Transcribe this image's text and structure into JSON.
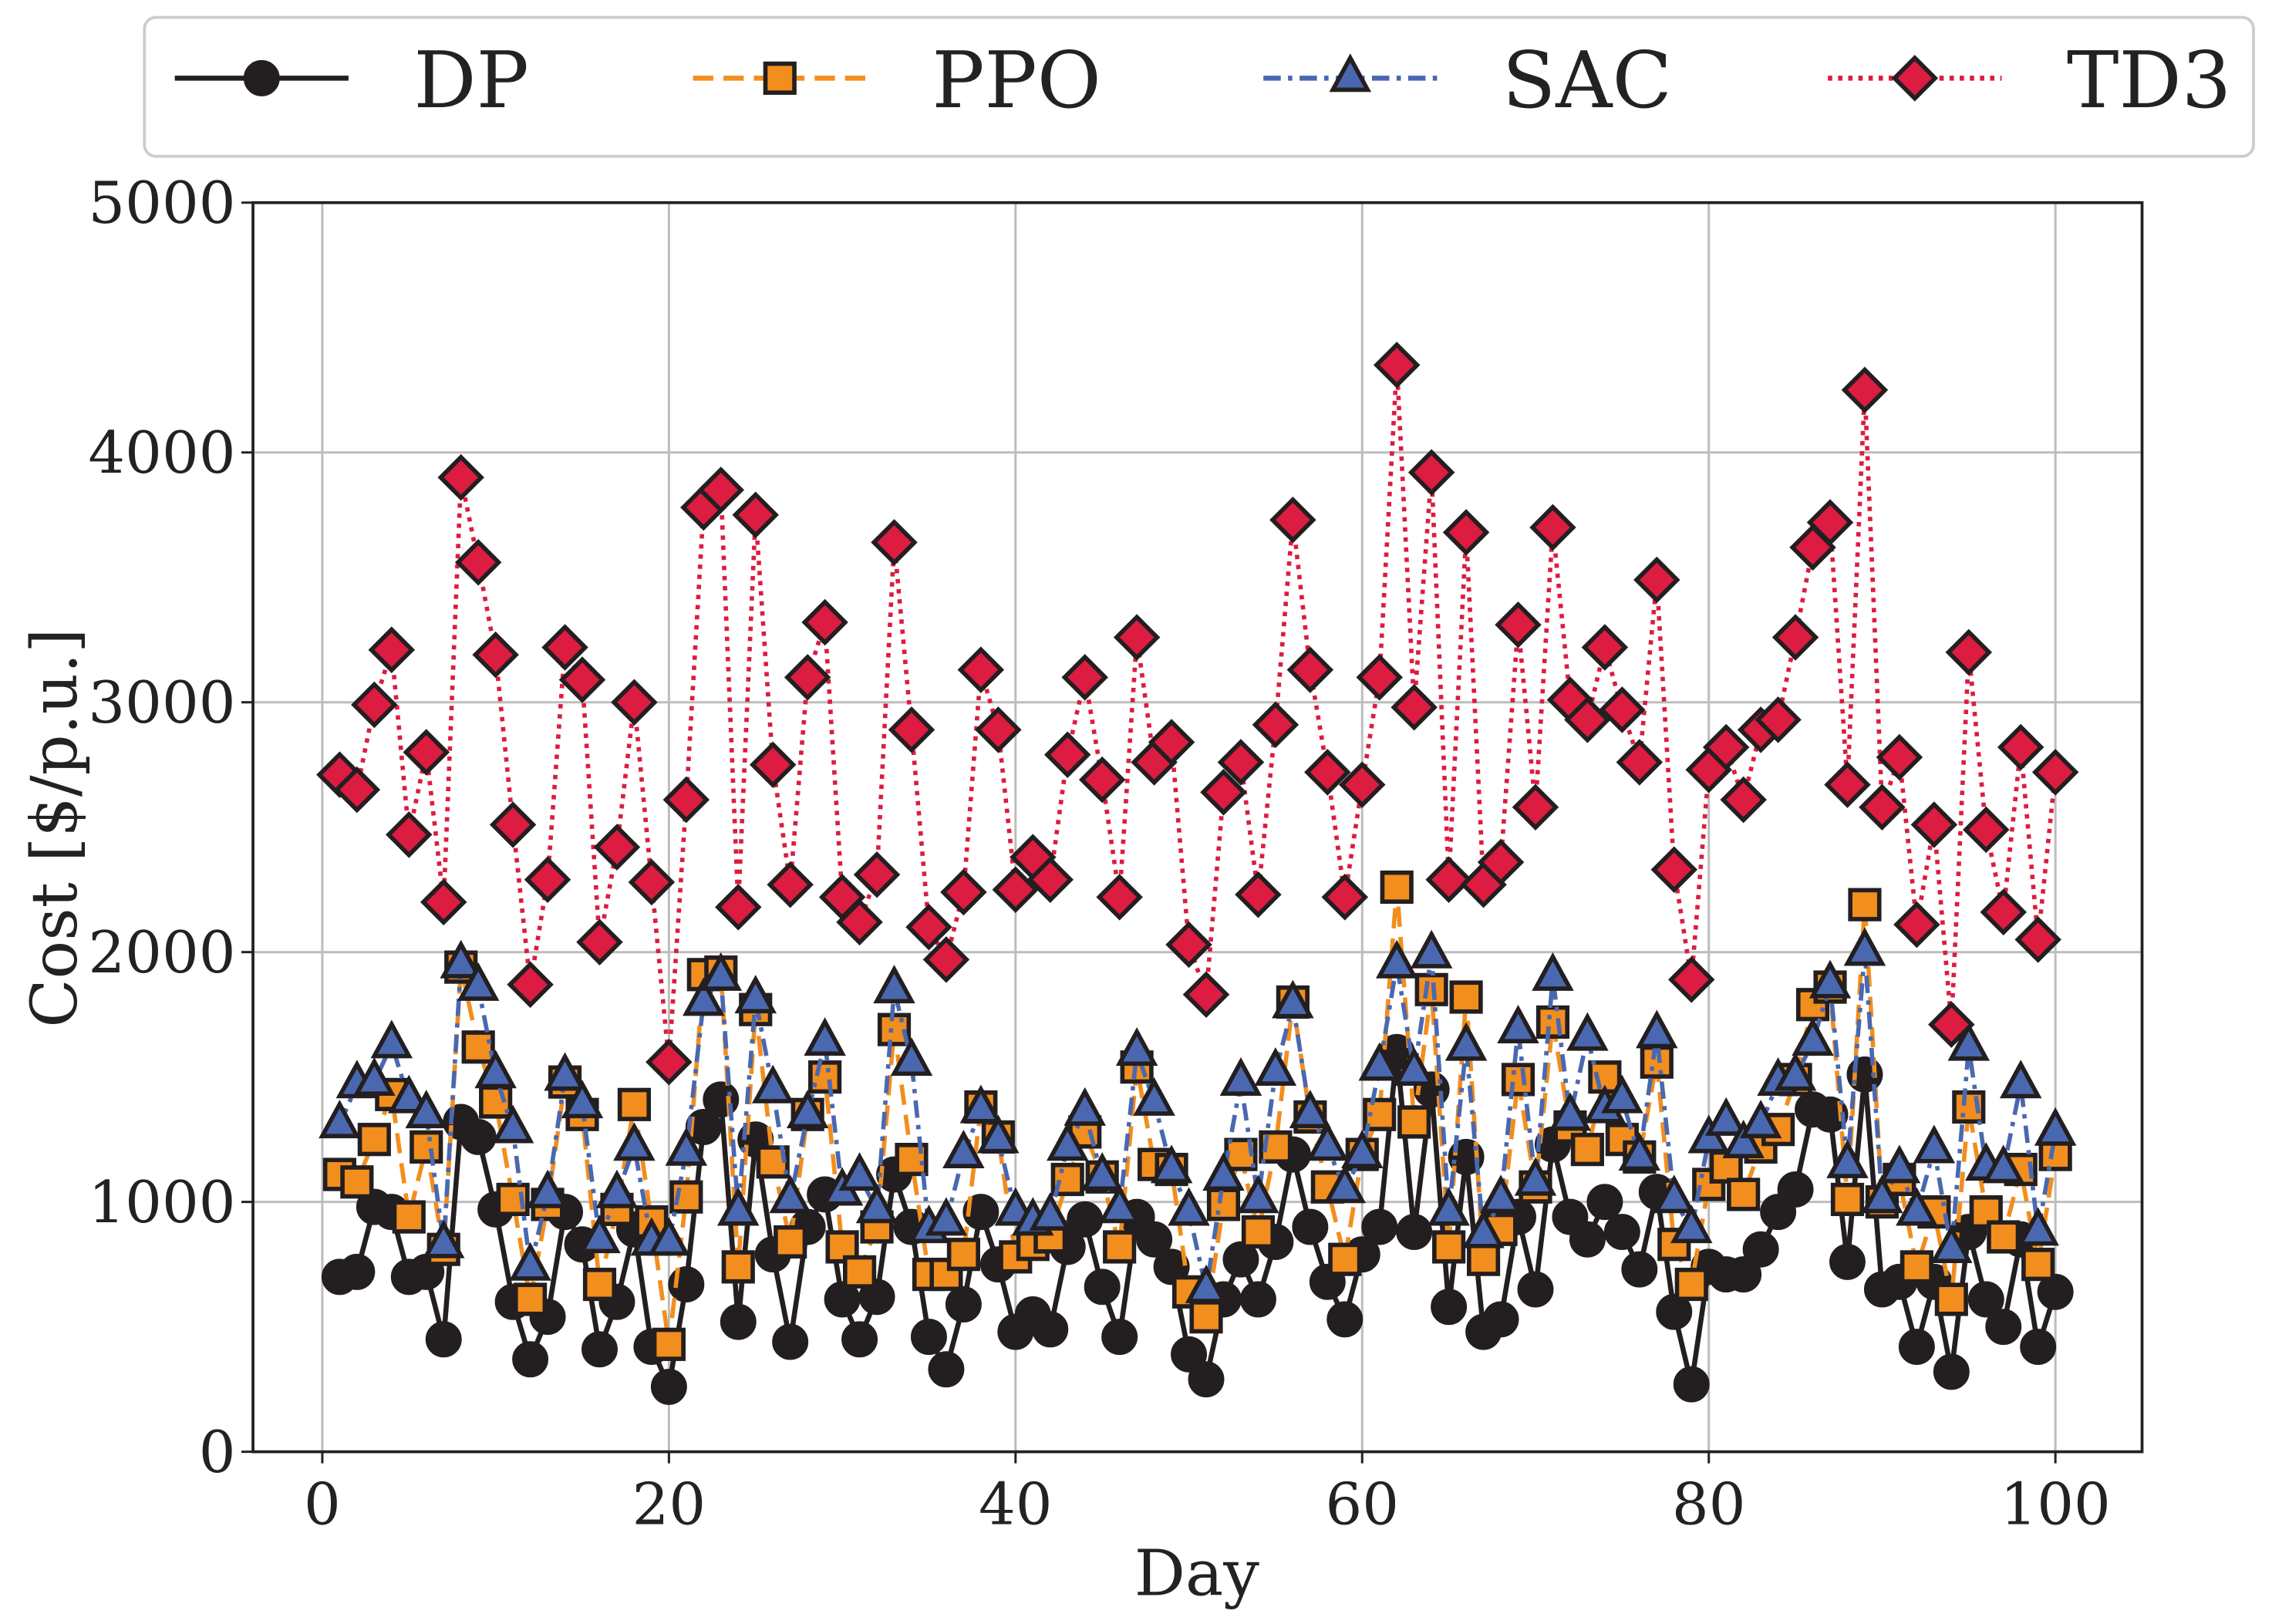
{
  "chart_data": {
    "type": "line",
    "title": "",
    "xlabel": "Day",
    "ylabel": "Cost [$/p.u.]",
    "xlim": [
      -4,
      105
    ],
    "ylim": [
      0,
      5000
    ],
    "xticks": [
      "0",
      "20",
      "40",
      "60",
      "80",
      "100"
    ],
    "xtick_values": [
      0,
      20,
      40,
      60,
      80,
      100
    ],
    "yticks": [
      "0",
      "1000",
      "2000",
      "3000",
      "4000",
      "5000"
    ],
    "ytick_values": [
      0,
      1000,
      2000,
      3000,
      4000,
      5000
    ],
    "grid": true,
    "legend_position": "top (above plot), single row",
    "x": [
      1,
      2,
      3,
      4,
      5,
      6,
      7,
      8,
      9,
      10,
      11,
      12,
      13,
      14,
      15,
      16,
      17,
      18,
      19,
      20,
      21,
      22,
      23,
      24,
      25,
      26,
      27,
      28,
      29,
      30,
      31,
      32,
      33,
      34,
      35,
      36,
      37,
      38,
      39,
      40,
      41,
      42,
      43,
      44,
      45,
      46,
      47,
      48,
      49,
      50,
      51,
      52,
      53,
      54,
      55,
      56,
      57,
      58,
      59,
      60,
      61,
      62,
      63,
      64,
      65,
      66,
      67,
      68,
      69,
      70,
      71,
      72,
      73,
      74,
      75,
      76,
      77,
      78,
      79,
      80,
      81,
      82,
      83,
      84,
      85,
      86,
      87,
      88,
      89,
      90,
      91,
      92,
      93,
      94,
      95,
      96,
      97,
      98,
      99,
      100
    ],
    "series": [
      {
        "name": "DP",
        "color": "#231f20",
        "marker": "circle",
        "linestyle": "solid",
        "values": [
          700,
          720,
          980,
          960,
          700,
          720,
          450,
          1320,
          1260,
          970,
          600,
          370,
          540,
          960,
          830,
          410,
          600,
          890,
          420,
          260,
          670,
          1300,
          1410,
          520,
          1250,
          790,
          440,
          900,
          1030,
          610,
          450,
          620,
          1110,
          900,
          460,
          330,
          590,
          960,
          750,
          480,
          550,
          490,
          820,
          930,
          660,
          460,
          940,
          850,
          740,
          390,
          290,
          610,
          770,
          610,
          840,
          1190,
          900,
          680,
          530,
          790,
          900,
          1600,
          880,
          1450,
          580,
          1180,
          480,
          530,
          940,
          650,
          1230,
          940,
          850,
          1000,
          880,
          730,
          1040,
          560,
          270,
          740,
          710,
          710,
          810,
          960,
          1050,
          1370,
          1350,
          760,
          1510,
          650,
          680,
          420,
          680,
          320,
          880,
          610,
          500,
          850,
          420,
          640
        ]
      },
      {
        "name": "PPO",
        "color": "#f28e1e",
        "marker": "square",
        "linestyle": "dashed",
        "values": [
          1110,
          1080,
          1250,
          1430,
          940,
          1220,
          810,
          1940,
          1620,
          1400,
          1010,
          610,
          990,
          1480,
          1350,
          670,
          970,
          1390,
          920,
          430,
          1020,
          1910,
          1920,
          740,
          1770,
          1160,
          840,
          1350,
          1500,
          820,
          720,
          900,
          1690,
          1170,
          710,
          710,
          790,
          1380,
          1260,
          780,
          830,
          860,
          1090,
          1280,
          1100,
          820,
          1540,
          1150,
          1130,
          640,
          540,
          990,
          1190,
          880,
          1220,
          1800,
          1340,
          1060,
          770,
          1190,
          1350,
          2260,
          1320,
          1850,
          820,
          1820,
          770,
          890,
          1490,
          1060,
          1720,
          1300,
          1210,
          1500,
          1250,
          1180,
          1560,
          830,
          670,
          1070,
          1140,
          1030,
          1220,
          1290,
          1490,
          1790,
          1860,
          1010,
          2190,
          1000,
          1090,
          740,
          960,
          610,
          1380,
          960,
          860,
          1130,
          750,
          1190
        ]
      },
      {
        "name": "SAC",
        "color": "#4a68b0",
        "marker": "triangle",
        "linestyle": "dashdot",
        "values": [
          1310,
          1470,
          1480,
          1630,
          1410,
          1350,
          830,
          1950,
          1860,
          1510,
          1290,
          740,
          1030,
          1500,
          1390,
          850,
          1030,
          1220,
          840,
          840,
          1200,
          1800,
          1900,
          960,
          1810,
          1450,
          1010,
          1350,
          1640,
          1040,
          1100,
          970,
          1850,
          1560,
          890,
          920,
          1190,
          1370,
          1250,
          960,
          920,
          940,
          1220,
          1360,
          1100,
          970,
          1600,
          1400,
          1130,
          960,
          650,
          1100,
          1480,
          1010,
          1520,
          1790,
          1350,
          1220,
          1050,
          1190,
          1540,
          1950,
          1520,
          1990,
          960,
          1620,
          870,
          1010,
          1690,
          1080,
          1900,
          1340,
          1660,
          1370,
          1410,
          1180,
          1670,
          1010,
          890,
          1250,
          1320,
          1230,
          1310,
          1480,
          1500,
          1640,
          1870,
          1150,
          2000,
          1010,
          1130,
          960,
          1210,
          810,
          1620,
          1140,
          1130,
          1470,
          880,
          1280
        ]
      },
      {
        "name": "TD3",
        "color": "#dc1c40",
        "marker": "diamond",
        "linestyle": "dotted",
        "values": [
          2710,
          2650,
          2990,
          3210,
          2470,
          2800,
          2200,
          3900,
          3560,
          3190,
          2510,
          1870,
          2290,
          3220,
          3090,
          2040,
          2420,
          3000,
          2280,
          1560,
          2610,
          3780,
          3850,
          2180,
          3750,
          2750,
          2270,
          3100,
          3320,
          2220,
          2120,
          2310,
          3640,
          2890,
          2100,
          1970,
          2240,
          3130,
          2890,
          2250,
          2380,
          2290,
          2790,
          3100,
          2690,
          2220,
          3260,
          2760,
          2840,
          2030,
          1830,
          2640,
          2760,
          2230,
          2910,
          3730,
          3130,
          2720,
          2220,
          2670,
          3100,
          4350,
          2980,
          3920,
          2290,
          3680,
          2270,
          2360,
          3310,
          2580,
          3700,
          3010,
          2930,
          3220,
          2970,
          2760,
          3490,
          2330,
          1890,
          2730,
          2820,
          2610,
          2890,
          2930,
          3260,
          3620,
          3720,
          2670,
          4250,
          2580,
          2780,
          2110,
          2510,
          1710,
          3200,
          2490,
          2160,
          2820,
          2050,
          2720
        ]
      }
    ]
  }
}
